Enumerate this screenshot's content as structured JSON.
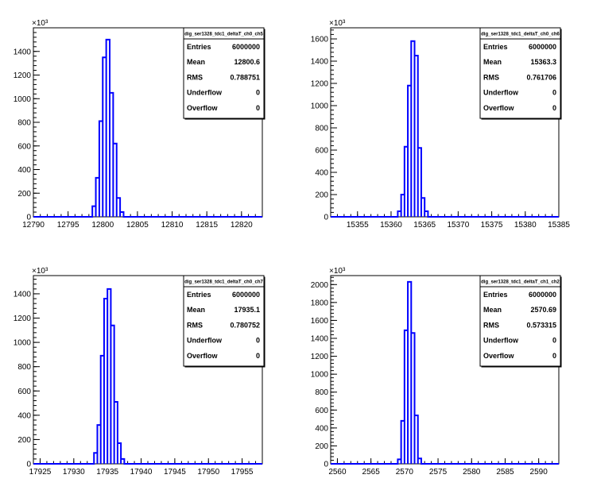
{
  "colors": {
    "histogram": "#0000ff",
    "frame": "#000000",
    "background": "#ffffff"
  },
  "stat_labels": {
    "entries": "Entries",
    "mean": "Mean",
    "rms": "RMS",
    "underflow": "Underflow",
    "overflow": "Overflow"
  },
  "chart_data": [
    {
      "type": "bar",
      "title": "dig_ser1328_tdc1_deltaT_ch0_ch5",
      "y_multiplier": "×10³",
      "xlim": [
        12790,
        12823
      ],
      "ylim": [
        0,
        1600
      ],
      "x_ticks": [
        "12790",
        "12795",
        "12800",
        "12805",
        "12810",
        "12815",
        "12820"
      ],
      "y_ticks": [
        "0",
        "200",
        "400",
        "600",
        "800",
        "1000",
        "1200",
        "1400"
      ],
      "bin_width": 0.5,
      "bins": [
        [
          12798.5,
          90
        ],
        [
          12799.0,
          330
        ],
        [
          12799.5,
          810
        ],
        [
          12800.0,
          1350
        ],
        [
          12800.5,
          1500
        ],
        [
          12801.0,
          1050
        ],
        [
          12801.5,
          620
        ],
        [
          12802.0,
          160
        ],
        [
          12802.5,
          40
        ]
      ],
      "stats": {
        "entries": "6000000",
        "mean": "12800.6",
        "rms": "0.788751",
        "underflow": "0",
        "overflow": "0"
      }
    },
    {
      "type": "bar",
      "title": "dig_ser1328_tdc1_deltaT_ch0_ch6",
      "y_multiplier": "×10³",
      "xlim": [
        15351,
        15385
      ],
      "ylim": [
        0,
        1700
      ],
      "x_ticks": [
        "15355",
        "15360",
        "15365",
        "15370",
        "15375",
        "15380",
        "15385"
      ],
      "y_ticks": [
        "0",
        "200",
        "400",
        "600",
        "800",
        "1000",
        "1200",
        "1400",
        "1600"
      ],
      "bin_width": 0.5,
      "bins": [
        [
          15361.0,
          50
        ],
        [
          15361.5,
          200
        ],
        [
          15362.0,
          630
        ],
        [
          15362.5,
          1180
        ],
        [
          15363.0,
          1580
        ],
        [
          15363.5,
          1450
        ],
        [
          15364.0,
          620
        ],
        [
          15364.5,
          170
        ],
        [
          15365.0,
          50
        ]
      ],
      "stats": {
        "entries": "6000000",
        "mean": "15363.3",
        "rms": "0.761706",
        "underflow": "0",
        "overflow": "0"
      }
    },
    {
      "type": "bar",
      "title": "dig_ser1328_tdc1_deltaT_ch0_ch7",
      "y_multiplier": "×10³",
      "xlim": [
        17924,
        17958
      ],
      "ylim": [
        0,
        1550
      ],
      "x_ticks": [
        "17925",
        "17930",
        "17935",
        "17940",
        "17945",
        "17950",
        "17955"
      ],
      "y_ticks": [
        "0",
        "200",
        "400",
        "600",
        "800",
        "1000",
        "1200",
        "1400"
      ],
      "bin_width": 0.5,
      "bins": [
        [
          17933.0,
          90
        ],
        [
          17933.5,
          320
        ],
        [
          17934.0,
          890
        ],
        [
          17934.5,
          1360
        ],
        [
          17935.0,
          1440
        ],
        [
          17935.5,
          1140
        ],
        [
          17936.0,
          510
        ],
        [
          17936.5,
          170
        ],
        [
          17937.0,
          40
        ]
      ],
      "stats": {
        "entries": "6000000",
        "mean": "17935.1",
        "rms": "0.780752",
        "underflow": "0",
        "overflow": "0"
      }
    },
    {
      "type": "bar",
      "title": "dig_ser1328_tdc1_deltaT_ch1_ch2",
      "y_multiplier": "×10³",
      "xlim": [
        2559,
        2593
      ],
      "ylim": [
        0,
        2100
      ],
      "x_ticks": [
        "2560",
        "2565",
        "2570",
        "2575",
        "2580",
        "2585",
        "2590"
      ],
      "y_ticks": [
        "0",
        "200",
        "400",
        "600",
        "800",
        "1000",
        "1200",
        "1400",
        "1600",
        "1800",
        "2000"
      ],
      "bin_width": 0.5,
      "bins": [
        [
          2569.0,
          50
        ],
        [
          2569.5,
          480
        ],
        [
          2570.0,
          1490
        ],
        [
          2570.5,
          2030
        ],
        [
          2571.0,
          1460
        ],
        [
          2571.5,
          540
        ],
        [
          2572.0,
          60
        ]
      ],
      "stats": {
        "entries": "6000000",
        "mean": "2570.69",
        "rms": "0.573315",
        "underflow": "0",
        "overflow": "0"
      }
    }
  ]
}
